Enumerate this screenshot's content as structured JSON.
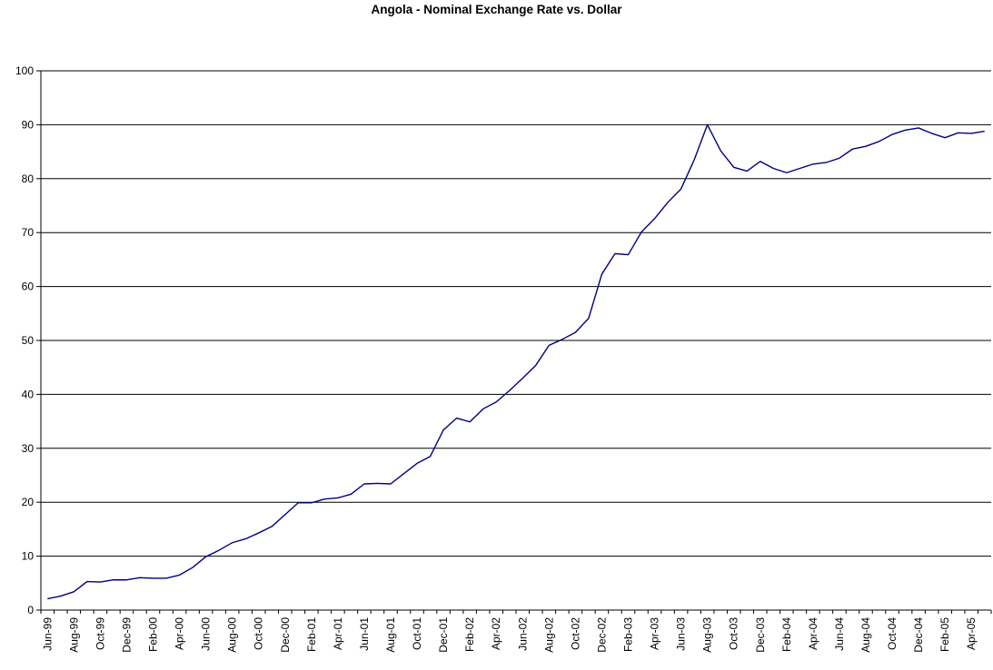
{
  "chart_data": {
    "type": "line",
    "title": "Angola - Nominal Exchange Rate vs. Dollar",
    "xlabel": "",
    "ylabel": "",
    "ylim": [
      0,
      100
    ],
    "yticks": [
      "0",
      "10",
      "20",
      "30",
      "40",
      "50",
      "60",
      "70",
      "80",
      "90",
      "100"
    ],
    "grid": "horizontal",
    "legend": "none",
    "line_color": "#000080",
    "x_tick_labels": [
      "Jun-99",
      "Aug-99",
      "Oct-99",
      "Dec-99",
      "Feb-00",
      "Apr-00",
      "Jun-00",
      "Aug-00",
      "Oct-00",
      "Dec-00",
      "Feb-01",
      "Apr-01",
      "Jun-01",
      "Aug-01",
      "Oct-01",
      "Dec-01",
      "Feb-02",
      "Apr-02",
      "Jun-02",
      "Aug-02",
      "Oct-02",
      "Dec-02",
      "Feb-03",
      "Apr-03",
      "Jun-03",
      "Aug-03",
      "Oct-03",
      "Dec-03",
      "Feb-04",
      "Apr-04",
      "Jun-04",
      "Aug-04",
      "Oct-04",
      "Dec-04",
      "Feb-05",
      "Apr-05"
    ],
    "x": [
      "Jun-99",
      "Jul-99",
      "Aug-99",
      "Sep-99",
      "Oct-99",
      "Nov-99",
      "Dec-99",
      "Jan-00",
      "Feb-00",
      "Mar-00",
      "Apr-00",
      "May-00",
      "Jun-00",
      "Jul-00",
      "Aug-00",
      "Sep-00",
      "Oct-00",
      "Nov-00",
      "Dec-00",
      "Jan-01",
      "Feb-01",
      "Mar-01",
      "Apr-01",
      "May-01",
      "Jun-01",
      "Jul-01",
      "Aug-01",
      "Sep-01",
      "Oct-01",
      "Nov-01",
      "Dec-01",
      "Jan-02",
      "Feb-02",
      "Mar-02",
      "Apr-02",
      "May-02",
      "Jun-02",
      "Jul-02",
      "Aug-02",
      "Sep-02",
      "Oct-02",
      "Nov-02",
      "Dec-02",
      "Jan-03",
      "Feb-03",
      "Mar-03",
      "Apr-03",
      "May-03",
      "Jun-03",
      "Jul-03",
      "Aug-03",
      "Sep-03",
      "Oct-03",
      "Nov-03",
      "Dec-03",
      "Jan-04",
      "Feb-04",
      "Mar-04",
      "Apr-04",
      "May-04",
      "Jun-04",
      "Jul-04",
      "Aug-04",
      "Sep-04",
      "Oct-04",
      "Nov-04",
      "Dec-04",
      "Jan-05",
      "Feb-05",
      "Mar-05",
      "Apr-05",
      "May-05"
    ],
    "values": [
      2.1,
      2.6,
      3.4,
      5.3,
      5.2,
      5.6,
      5.6,
      6.0,
      5.9,
      5.9,
      6.5,
      7.9,
      9.9,
      11.1,
      12.5,
      13.2,
      14.3,
      15.5,
      17.7,
      19.9,
      19.9,
      20.6,
      20.8,
      21.5,
      23.4,
      23.5,
      23.4,
      25.3,
      27.2,
      28.5,
      33.4,
      35.6,
      34.9,
      37.3,
      38.6,
      40.7,
      43.0,
      45.4,
      49.1,
      50.2,
      51.5,
      54.1,
      62.3,
      66.1,
      65.9,
      70.1,
      72.6,
      75.6,
      78.1,
      83.5,
      90.0,
      85.2,
      82.1,
      81.4,
      83.2,
      81.9,
      81.1,
      81.9,
      82.7,
      83.0,
      83.8,
      85.5,
      86.0,
      86.9,
      88.2,
      89.0,
      89.4,
      88.4,
      87.6,
      88.5,
      88.4,
      88.8
    ]
  }
}
